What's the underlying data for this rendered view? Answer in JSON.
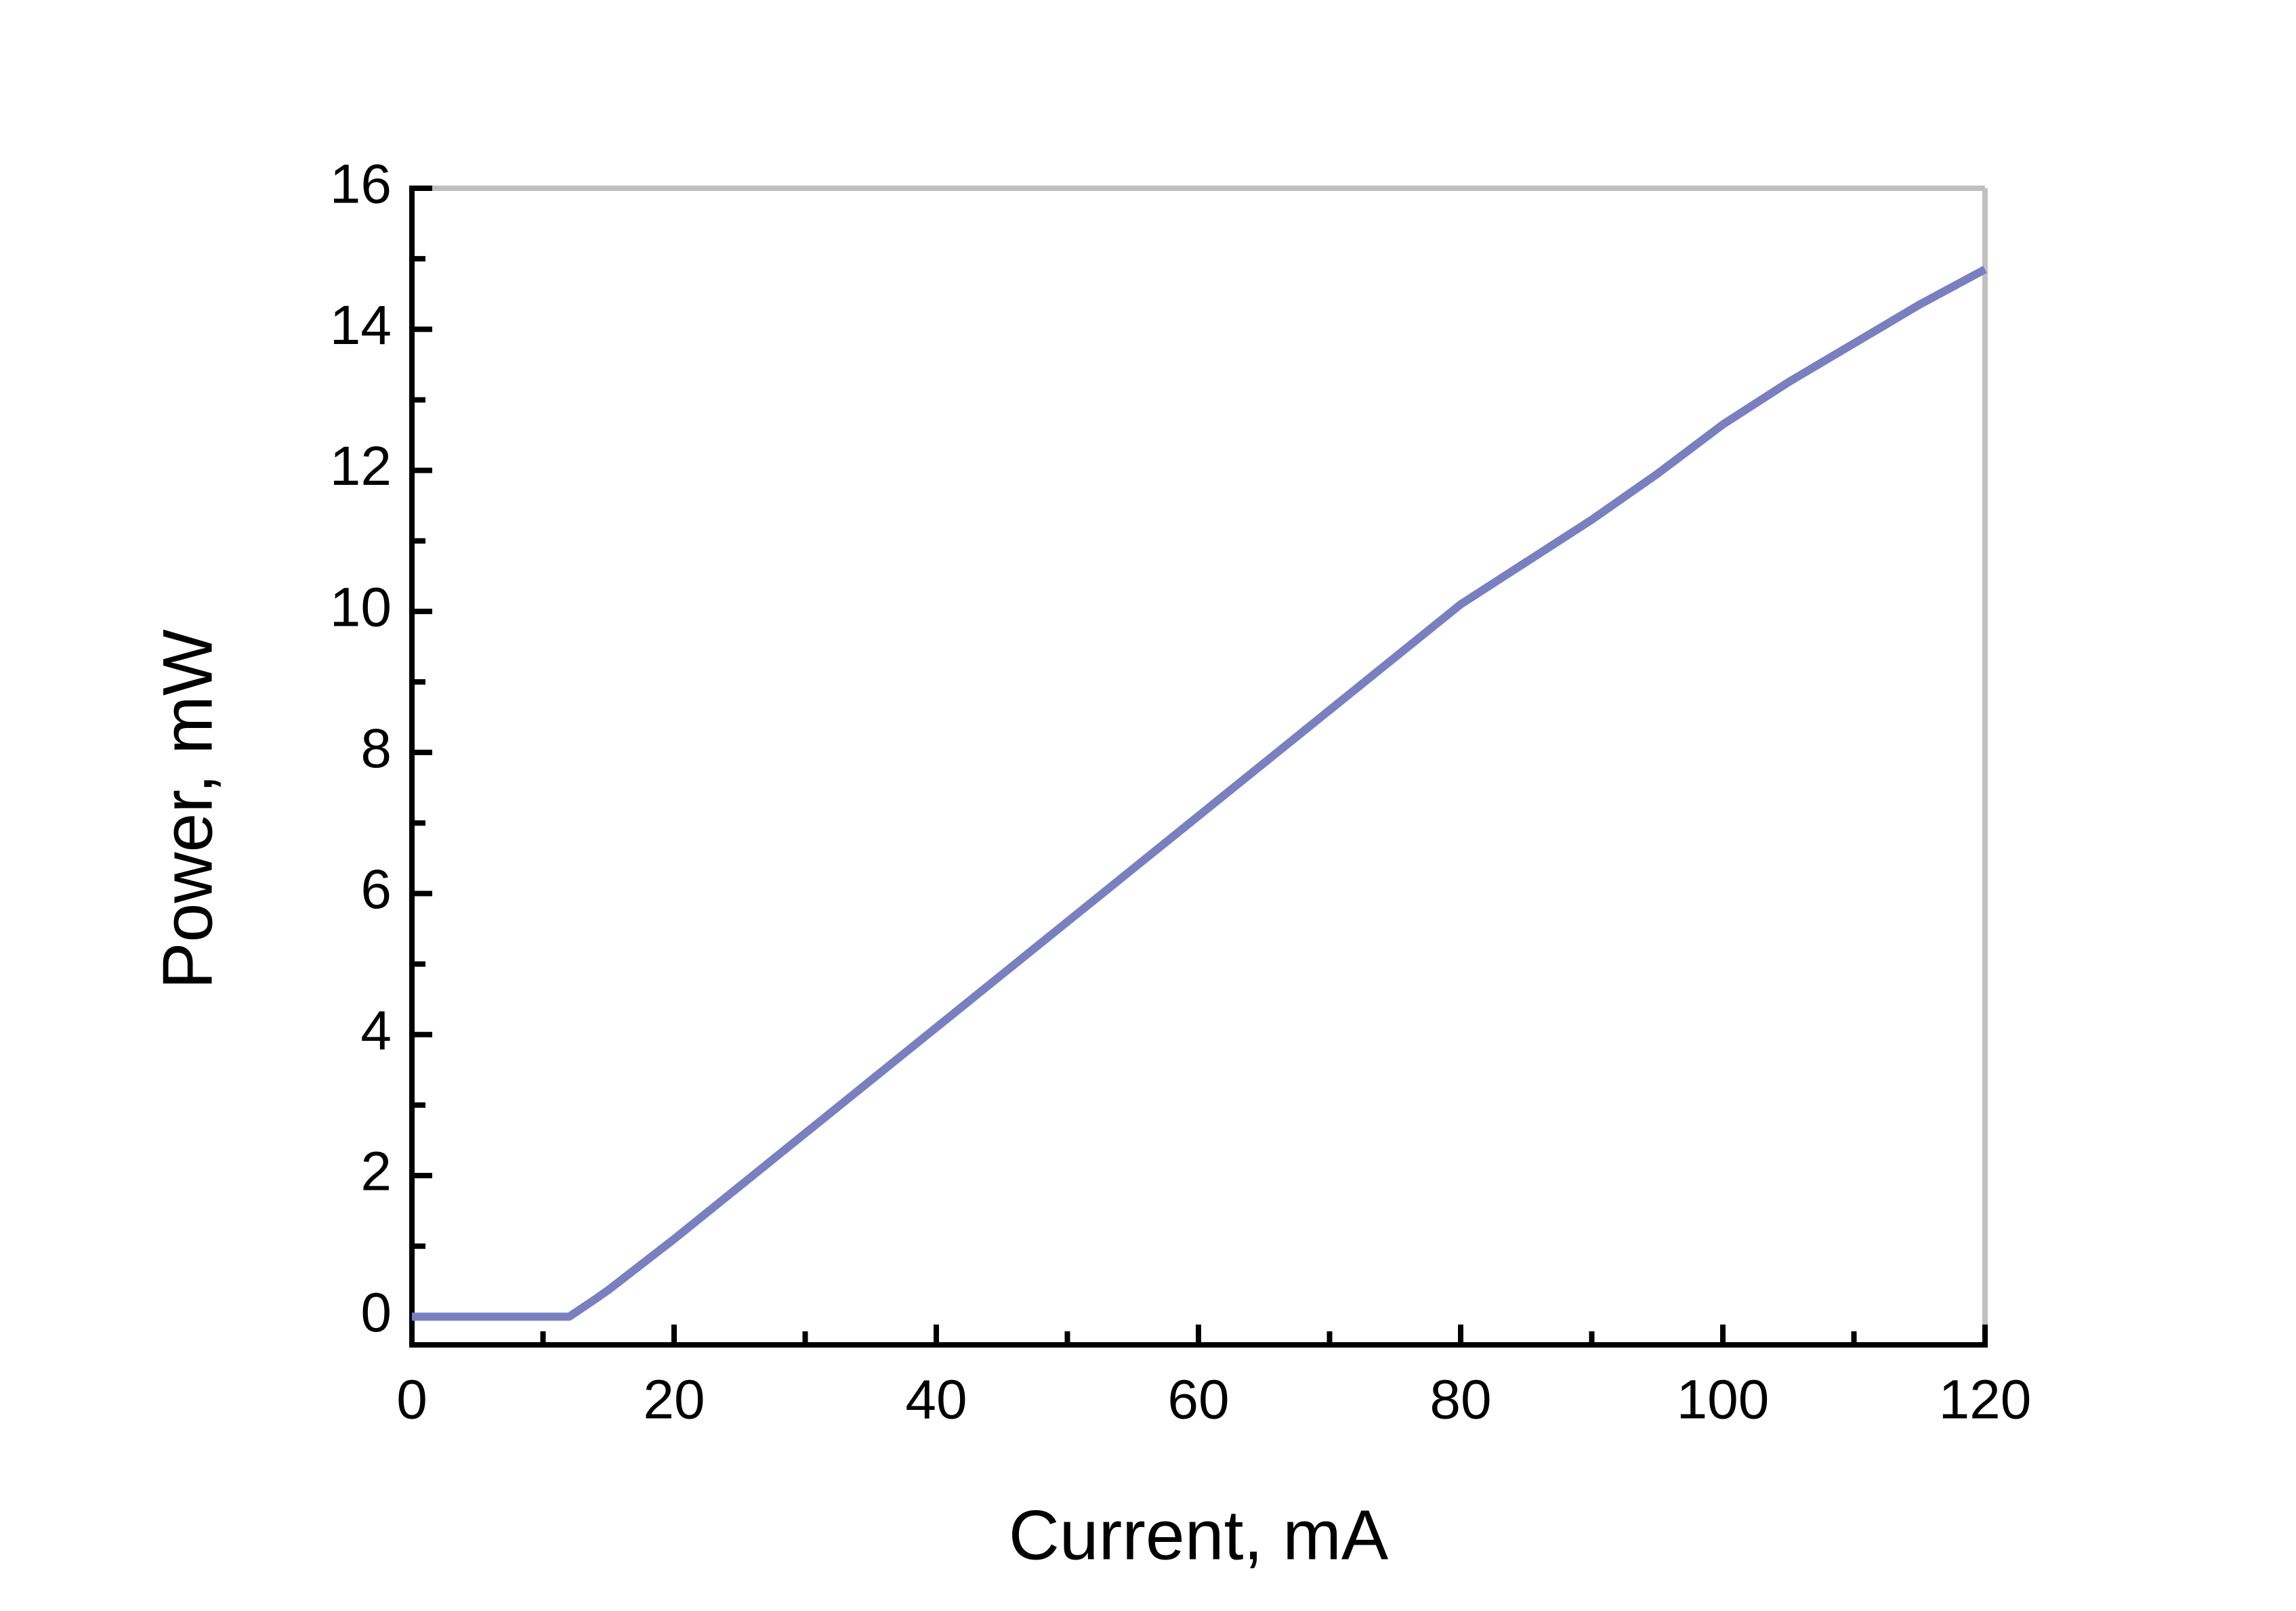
{
  "chart_data": {
    "type": "line",
    "x_label": "Current, mA",
    "y_label": "Power, mW",
    "x": [
      0,
      5,
      10,
      12,
      14,
      15,
      20,
      25,
      30,
      35,
      40,
      45,
      50,
      55,
      60,
      65,
      70,
      75,
      80,
      85,
      90,
      95,
      100,
      105,
      110,
      115,
      120
    ],
    "series": [
      {
        "color": "#7880c0",
        "values": [
          0,
          0,
          0,
          0,
          0.25,
          0.38,
          1.1,
          1.85,
          2.6,
          3.35,
          4.1,
          4.85,
          5.6,
          6.35,
          7.1,
          7.85,
          8.6,
          9.35,
          10.1,
          10.7,
          11.3,
          11.95,
          12.65,
          13.25,
          13.8,
          14.35,
          14.85
        ]
      }
    ],
    "xlim": [
      0,
      120
    ],
    "xticks": [
      0,
      20,
      40,
      60,
      80,
      100,
      120
    ],
    "xticks_minor": [
      10,
      30,
      50,
      70,
      90,
      110
    ],
    "ylim": [
      -0.4,
      16
    ],
    "yticks": [
      0,
      2,
      4,
      6,
      8,
      10,
      12,
      14,
      16
    ],
    "yticks_minor": [
      1,
      3,
      5,
      7,
      9,
      11,
      13,
      15
    ],
    "grid": false
  }
}
